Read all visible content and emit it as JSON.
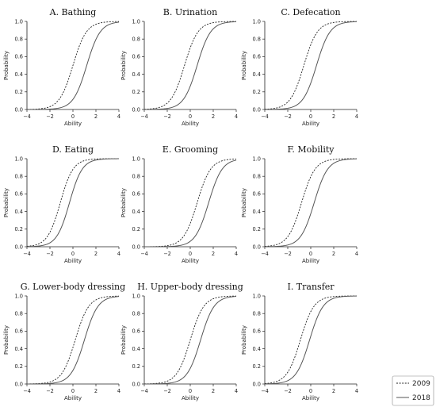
{
  "chart_data": {
    "type": "line",
    "xlabel": "Ability",
    "ylabel": "Probability",
    "xlim": [
      -4,
      4
    ],
    "ylim": [
      0,
      1
    ],
    "xticks": [
      -4,
      -2,
      0,
      2,
      4
    ],
    "xtick_labels": [
      "−4",
      "−2",
      "0",
      "2",
      "4"
    ],
    "yticks": [
      0.0,
      0.2,
      0.4,
      0.6,
      0.8,
      1.0
    ],
    "ytick_labels": [
      "0.0",
      "0.2",
      "0.4",
      "0.6",
      "0.8",
      "1.0"
    ],
    "grid": false,
    "legend": {
      "placement": "bottom-right",
      "entries": [
        {
          "label": "2009",
          "style": "dotted",
          "color": "#222222"
        },
        {
          "label": "2018",
          "style": "solid",
          "color": "#444444"
        }
      ]
    },
    "panels": [
      {
        "title": "A. Bathing",
        "series": [
          {
            "name": "2009",
            "a": 1.7,
            "b": 0.0
          },
          {
            "name": "2018",
            "a": 1.7,
            "b": 1.2
          }
        ]
      },
      {
        "title": "B. Urination",
        "series": [
          {
            "name": "2009",
            "a": 1.7,
            "b": -0.5
          },
          {
            "name": "2018",
            "a": 1.7,
            "b": 0.6
          }
        ]
      },
      {
        "title": "C. Defecation",
        "series": [
          {
            "name": "2009",
            "a": 1.7,
            "b": -0.6
          },
          {
            "name": "2018",
            "a": 1.7,
            "b": 0.5
          }
        ]
      },
      {
        "title": "D. Eating",
        "series": [
          {
            "name": "2009",
            "a": 1.8,
            "b": -1.1
          },
          {
            "name": "2018",
            "a": 1.8,
            "b": -0.3
          }
        ]
      },
      {
        "title": "E. Grooming",
        "series": [
          {
            "name": "2009",
            "a": 1.7,
            "b": 0.6
          },
          {
            "name": "2018",
            "a": 1.7,
            "b": 1.6
          }
        ]
      },
      {
        "title": "F. Mobility",
        "series": [
          {
            "name": "2009",
            "a": 1.7,
            "b": -0.8
          },
          {
            "name": "2018",
            "a": 1.7,
            "b": 0.3
          }
        ]
      },
      {
        "title": "G. Lower-body dressing",
        "series": [
          {
            "name": "2009",
            "a": 1.7,
            "b": 0.2
          },
          {
            "name": "2018",
            "a": 1.7,
            "b": 1.0
          }
        ]
      },
      {
        "title": "H. Upper-body dressing",
        "series": [
          {
            "name": "2009",
            "a": 1.7,
            "b": 0.0
          },
          {
            "name": "2018",
            "a": 1.7,
            "b": 0.9
          }
        ]
      },
      {
        "title": "I. Transfer",
        "series": [
          {
            "name": "2009",
            "a": 1.7,
            "b": -0.9
          },
          {
            "name": "2018",
            "a": 1.7,
            "b": -0.1
          }
        ]
      }
    ]
  }
}
